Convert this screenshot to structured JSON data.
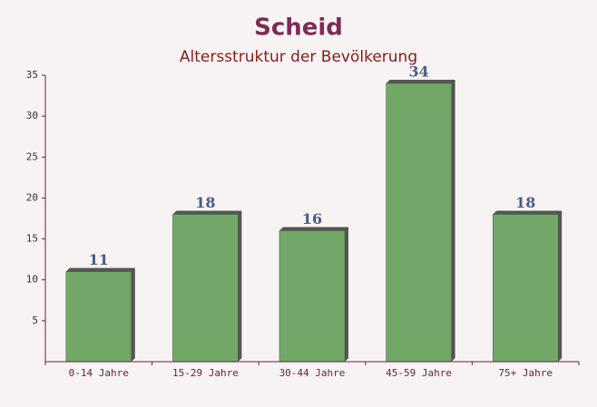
{
  "chart_data": {
    "type": "bar",
    "title": "Scheid",
    "subtitle": "Altersstruktur der Bevölkerung",
    "categories": [
      "0-14 Jahre",
      "15-29 Jahre",
      "30-44 Jahre",
      "45-59 Jahre",
      "75+ Jahre"
    ],
    "values": [
      11,
      18,
      16,
      34,
      18
    ],
    "color": "#6aa35f",
    "ylim": [
      0,
      35
    ],
    "yticks": [
      5,
      10,
      15,
      20,
      25,
      30,
      35
    ],
    "grid": false
  }
}
